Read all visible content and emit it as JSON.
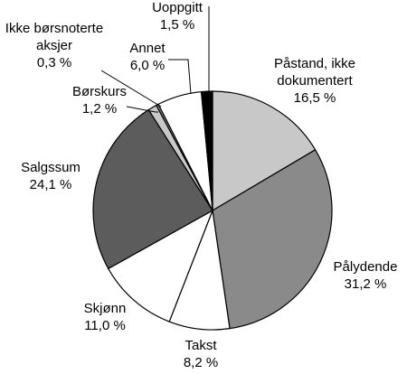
{
  "chart_data": {
    "type": "pie",
    "unit": "%",
    "slices": [
      {
        "name": "Påstand, ikke dokumentert",
        "value": 16.5,
        "label_lines": [
          "Påstand, ikke",
          "dokumentert",
          "16,5 %"
        ],
        "color": "#c8c8c8"
      },
      {
        "name": "Pålydende",
        "value": 31.2,
        "label_lines": [
          "Pålydende",
          "31,2 %"
        ],
        "color": "#8a8a8a"
      },
      {
        "name": "Takst",
        "value": 8.2,
        "label_lines": [
          "Takst",
          "8,2 %"
        ],
        "color": "#ffffff"
      },
      {
        "name": "Skjønn",
        "value": 11.0,
        "label_lines": [
          "Skjønn",
          "11,0 %"
        ],
        "color": "#ffffff"
      },
      {
        "name": "Salgssum",
        "value": 24.1,
        "label_lines": [
          "Salgssum",
          "24,1 %"
        ],
        "color": "#5c5c5c"
      },
      {
        "name": "Børskurs",
        "value": 1.2,
        "label_lines": [
          "Børskurs",
          "1,2 %"
        ],
        "color": "#c8c8c8"
      },
      {
        "name": "Ikke børsnoterte aksjer",
        "value": 0.3,
        "label_lines": [
          "Ikke børsnoterte",
          "aksjer",
          "0,3 %"
        ],
        "color": "#8a8a8a"
      },
      {
        "name": "Annet",
        "value": 6.0,
        "label_lines": [
          "Annet",
          "6,0 %"
        ],
        "color": "#ffffff"
      },
      {
        "name": "Uoppgitt",
        "value": 1.5,
        "label_lines": [
          "Uoppgitt",
          "1,5 %"
        ],
        "color": "#000000"
      }
    ]
  }
}
